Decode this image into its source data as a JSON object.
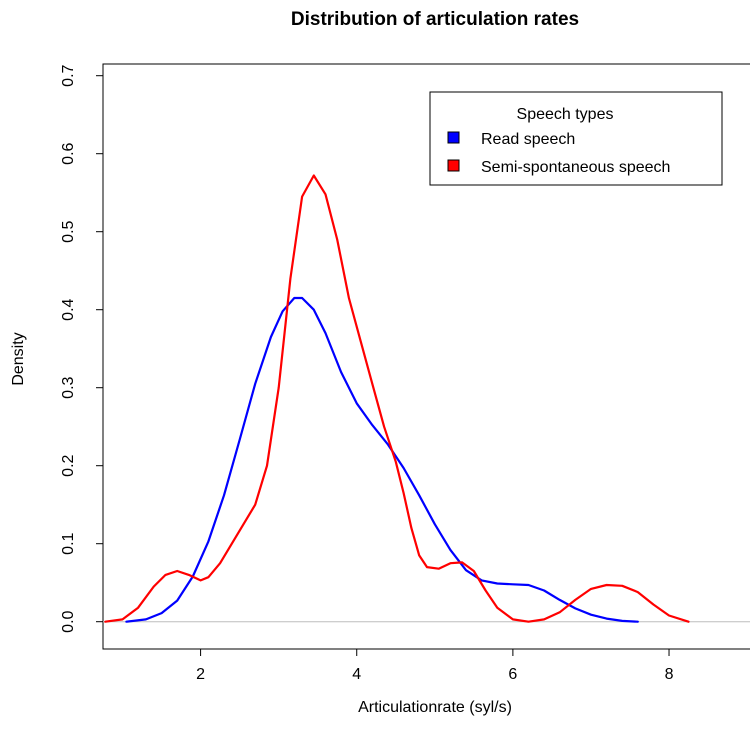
{
  "chart_data": {
    "type": "line",
    "title": "Distribution of articulation rates",
    "xlabel": "Articulationrate (syl/s)",
    "ylabel": "Density",
    "xlim": [
      0.75,
      9.05
    ],
    "ylim": [
      -0.035,
      0.715
    ],
    "x_ticks": [
      2,
      4,
      6,
      8
    ],
    "x_tick_labels": [
      "2",
      "4",
      "6",
      "8"
    ],
    "y_ticks": [
      0.0,
      0.1,
      0.2,
      0.3,
      0.4,
      0.5,
      0.6,
      0.7
    ],
    "y_tick_labels": [
      "0.0",
      "0.1",
      "0.2",
      "0.3",
      "0.4",
      "0.5",
      "0.6",
      "0.7"
    ],
    "grid": false,
    "baseline": {
      "y": 0,
      "color": "#bebebe"
    },
    "legend": {
      "title": "Speech types",
      "position": "top-right",
      "items": [
        {
          "label": "Read speech",
          "color": "#0000ff"
        },
        {
          "label": "Semi-spontaneous speech",
          "color": "#ff0000"
        }
      ]
    },
    "series": [
      {
        "name": "Read speech",
        "color": "#0000ff",
        "points": [
          [
            1.05,
            0.0
          ],
          [
            1.3,
            0.003
          ],
          [
            1.5,
            0.011
          ],
          [
            1.7,
            0.027
          ],
          [
            1.9,
            0.058
          ],
          [
            2.1,
            0.103
          ],
          [
            2.3,
            0.162
          ],
          [
            2.5,
            0.233
          ],
          [
            2.7,
            0.305
          ],
          [
            2.9,
            0.365
          ],
          [
            3.05,
            0.398
          ],
          [
            3.2,
            0.415
          ],
          [
            3.3,
            0.415
          ],
          [
            3.45,
            0.4
          ],
          [
            3.6,
            0.37
          ],
          [
            3.8,
            0.32
          ],
          [
            4.0,
            0.28
          ],
          [
            4.2,
            0.252
          ],
          [
            4.4,
            0.227
          ],
          [
            4.6,
            0.197
          ],
          [
            4.8,
            0.162
          ],
          [
            5.0,
            0.125
          ],
          [
            5.2,
            0.092
          ],
          [
            5.4,
            0.066
          ],
          [
            5.6,
            0.053
          ],
          [
            5.8,
            0.049
          ],
          [
            6.0,
            0.048
          ],
          [
            6.2,
            0.047
          ],
          [
            6.4,
            0.04
          ],
          [
            6.6,
            0.028
          ],
          [
            6.8,
            0.017
          ],
          [
            7.0,
            0.009
          ],
          [
            7.2,
            0.004
          ],
          [
            7.4,
            0.001
          ],
          [
            7.6,
            0.0
          ]
        ]
      },
      {
        "name": "Semi-spontaneous speech",
        "color": "#ff0000",
        "points": [
          [
            0.78,
            0.0
          ],
          [
            1.0,
            0.003
          ],
          [
            1.2,
            0.018
          ],
          [
            1.4,
            0.045
          ],
          [
            1.55,
            0.06
          ],
          [
            1.7,
            0.065
          ],
          [
            1.85,
            0.06
          ],
          [
            2.0,
            0.053
          ],
          [
            2.1,
            0.057
          ],
          [
            2.25,
            0.075
          ],
          [
            2.4,
            0.1
          ],
          [
            2.55,
            0.125
          ],
          [
            2.7,
            0.15
          ],
          [
            2.85,
            0.2
          ],
          [
            3.0,
            0.3
          ],
          [
            3.15,
            0.44
          ],
          [
            3.3,
            0.545
          ],
          [
            3.45,
            0.572
          ],
          [
            3.6,
            0.548
          ],
          [
            3.75,
            0.49
          ],
          [
            3.9,
            0.415
          ],
          [
            4.05,
            0.36
          ],
          [
            4.2,
            0.305
          ],
          [
            4.35,
            0.25
          ],
          [
            4.5,
            0.205
          ],
          [
            4.6,
            0.165
          ],
          [
            4.7,
            0.12
          ],
          [
            4.8,
            0.085
          ],
          [
            4.9,
            0.07
          ],
          [
            5.05,
            0.068
          ],
          [
            5.2,
            0.075
          ],
          [
            5.35,
            0.076
          ],
          [
            5.5,
            0.065
          ],
          [
            5.65,
            0.04
          ],
          [
            5.8,
            0.018
          ],
          [
            6.0,
            0.003
          ],
          [
            6.2,
            0.0
          ],
          [
            6.4,
            0.003
          ],
          [
            6.6,
            0.012
          ],
          [
            6.8,
            0.028
          ],
          [
            7.0,
            0.042
          ],
          [
            7.2,
            0.047
          ],
          [
            7.4,
            0.046
          ],
          [
            7.6,
            0.038
          ],
          [
            7.8,
            0.022
          ],
          [
            8.0,
            0.008
          ],
          [
            8.25,
            0.0
          ]
        ]
      }
    ]
  }
}
